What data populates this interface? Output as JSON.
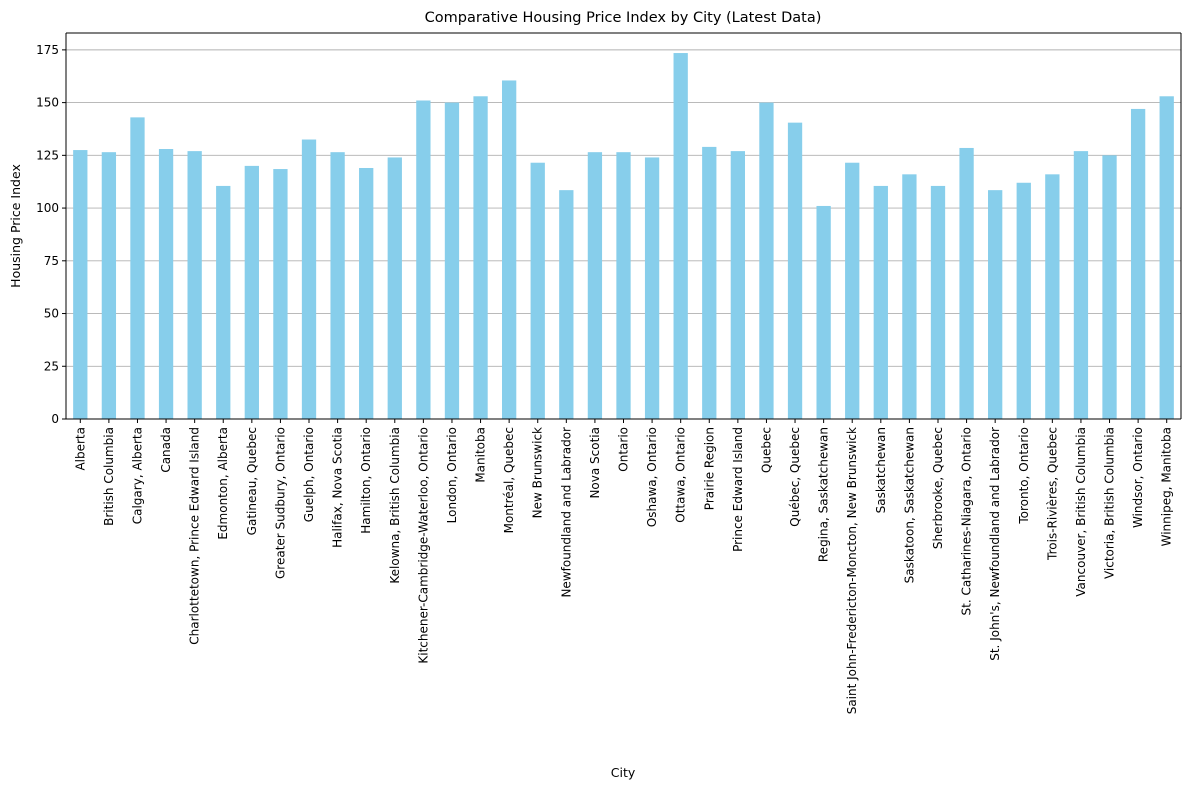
{
  "chart_data": {
    "type": "bar",
    "title": "Comparative Housing Price Index by City (Latest Data)",
    "xlabel": "City",
    "ylabel": "Housing Price Index",
    "ylim": [
      0,
      183
    ],
    "yticks": [
      0,
      25,
      50,
      75,
      100,
      125,
      150,
      175
    ],
    "grid": "y",
    "bar_color": "#87ceeb",
    "categories": [
      "Alberta",
      "British Columbia",
      "Calgary, Alberta",
      "Canada",
      "Charlottetown, Prince Edward Island",
      "Edmonton, Alberta",
      "Gatineau, Quebec",
      "Greater Sudbury, Ontario",
      "Guelph, Ontario",
      "Halifax, Nova Scotia",
      "Hamilton, Ontario",
      "Kelowna, British Columbia",
      "Kitchener-Cambridge-Waterloo, Ontario",
      "London, Ontario",
      "Manitoba",
      "Montréal, Quebec",
      "New Brunswick",
      "Newfoundland and Labrador",
      "Nova Scotia",
      "Ontario",
      "Oshawa, Ontario",
      "Ottawa, Ontario",
      "Prairie Region",
      "Prince Edward Island",
      "Quebec",
      "Québec, Quebec",
      "Regina, Saskatchewan",
      "Saint John-Fredericton-Moncton, New Brunswick",
      "Saskatchewan",
      "Saskatoon, Saskatchewan",
      "Sherbrooke, Quebec",
      "St. Catharines-Niagara, Ontario",
      "St. John's, Newfoundland and Labrador",
      "Toronto, Ontario",
      "Trois-Rivières, Quebec",
      "Vancouver, British Columbia",
      "Victoria, British Columbia",
      "Windsor, Ontario",
      "Winnipeg, Manitoba"
    ],
    "values": [
      127.5,
      126.5,
      143,
      128,
      127,
      110.5,
      120,
      118.5,
      132.5,
      126.5,
      119,
      124,
      151,
      150,
      153,
      160.5,
      121.5,
      108.5,
      126.5,
      126.5,
      124,
      173.5,
      129,
      127,
      150,
      140.5,
      101,
      121.5,
      110.5,
      116,
      110.5,
      128.5,
      108.5,
      112,
      116,
      127,
      125,
      147,
      153
    ]
  }
}
